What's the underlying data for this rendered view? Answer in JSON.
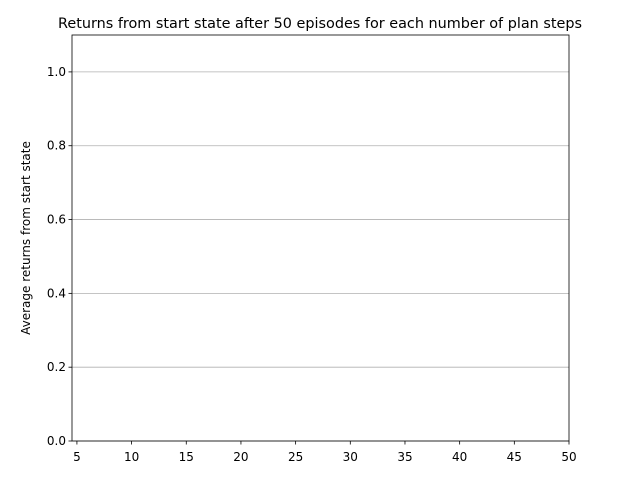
{
  "chart_data": {
    "type": "line",
    "title": "Returns from start state after 50 episodes for each number of plan steps",
    "xlabel": "",
    "ylabel": "Average returns from start state",
    "xlim": [
      4.55,
      50
    ],
    "ylim": [
      0.0,
      1.1
    ],
    "xticks": [
      5,
      10,
      15,
      20,
      25,
      30,
      35,
      40,
      45,
      50
    ],
    "xtick_labels": [
      "5",
      "10",
      "15",
      "20",
      "25",
      "30",
      "35",
      "40",
      "45",
      "50"
    ],
    "yticks": [
      0.0,
      0.2,
      0.4,
      0.6,
      0.8,
      1.0
    ],
    "ytick_labels": [
      "0.0",
      "0.2",
      "0.4",
      "0.6",
      "0.8",
      "1.0"
    ],
    "grid": "y-major",
    "series": [
      {
        "name": "",
        "x": [],
        "y": []
      }
    ]
  }
}
